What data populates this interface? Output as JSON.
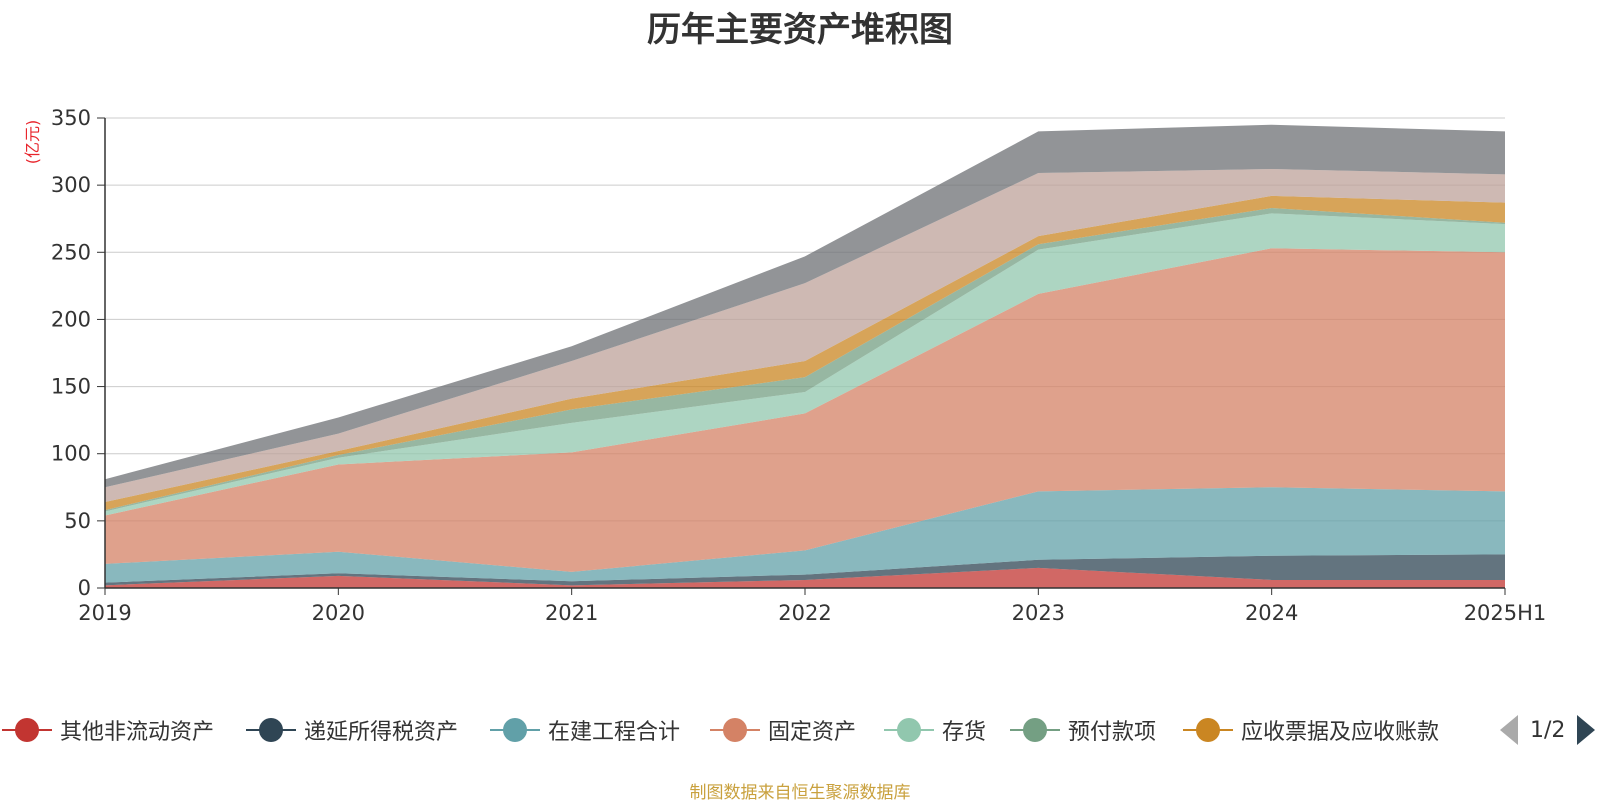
{
  "chart_data": {
    "type": "area",
    "stacked": true,
    "title": "历年主要资产堆积图",
    "unit": "(亿元)",
    "categories": [
      "2019",
      "2020",
      "2021",
      "2022",
      "2023",
      "2024",
      "2025H1"
    ],
    "ylim": [
      0,
      350
    ],
    "yticks": [
      0,
      50,
      100,
      150,
      200,
      250,
      300,
      350
    ],
    "grid": true,
    "legend_position": "bottom",
    "series": [
      {
        "name": "其他非流动资产",
        "color": "#c23531",
        "values": [
          2,
          9,
          2,
          6,
          15,
          6,
          6
        ]
      },
      {
        "name": "递延所得税资产",
        "color": "#2f4554",
        "values": [
          2,
          2,
          3,
          4,
          6,
          18,
          19
        ]
      },
      {
        "name": "在建工程合计",
        "color": "#61a0a8",
        "values": [
          14,
          16,
          7,
          18,
          51,
          51,
          47
        ]
      },
      {
        "name": "固定资产",
        "color": "#d48265",
        "values": [
          36,
          65,
          89,
          102,
          147,
          178,
          178
        ]
      },
      {
        "name": "存货",
        "color": "#91c7ae",
        "values": [
          3,
          5,
          22,
          16,
          33,
          26,
          21
        ]
      },
      {
        "name": "预付款项",
        "color": "#749f83",
        "values": [
          1,
          2,
          10,
          11,
          4,
          4,
          1
        ]
      },
      {
        "name": "应收票据及应收账款",
        "color": "#ca8622",
        "values": [
          6,
          3,
          8,
          12,
          6,
          9,
          15
        ]
      },
      {
        "name": "",
        "color": "#bda29a",
        "values": [
          11,
          13,
          28,
          58,
          47,
          20,
          21
        ]
      },
      {
        "name": "",
        "color": "#6e7074",
        "values": [
          6,
          12,
          11,
          20,
          31,
          33,
          32
        ]
      }
    ]
  },
  "legend": {
    "page": "1/2"
  },
  "source_note": "制图数据来自恒生聚源数据库"
}
